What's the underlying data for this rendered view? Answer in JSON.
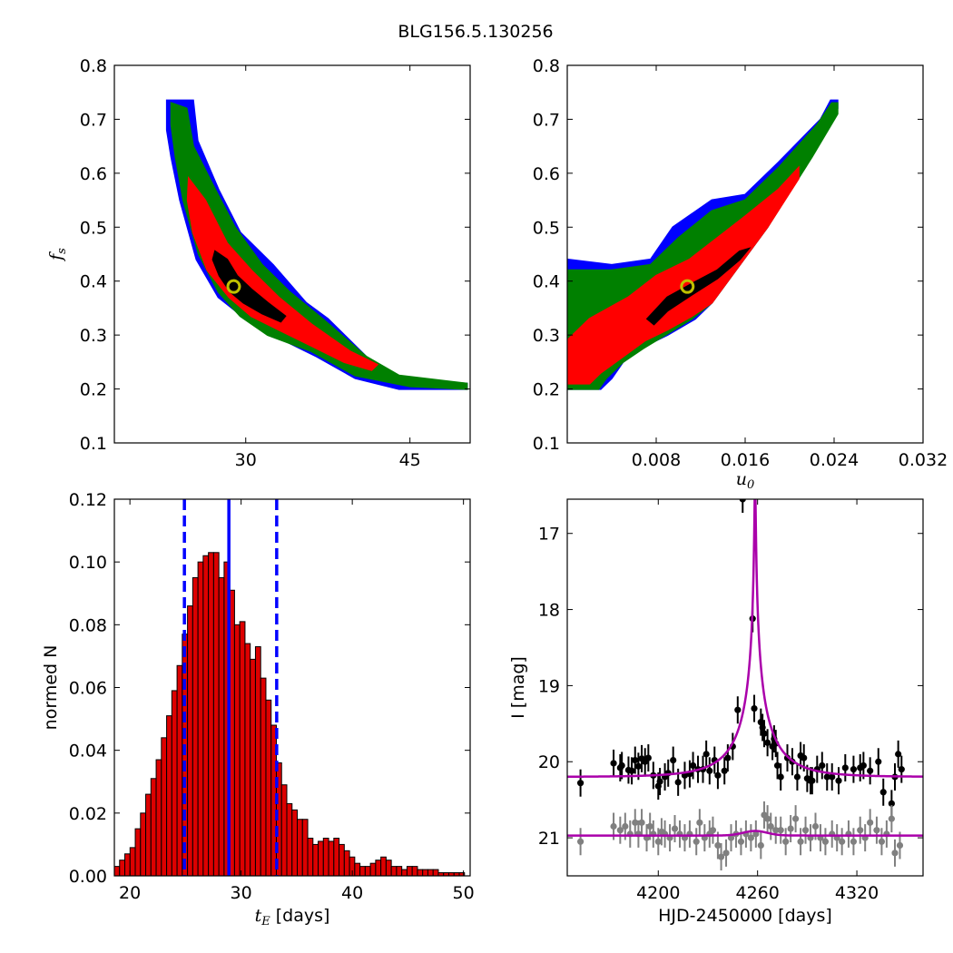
{
  "figure_title": "BLG156.5.130256",
  "colors": {
    "sigma1": "#000000",
    "sigma2": "#ff0000",
    "sigma3": "#008000",
    "sigma4": "#0000ff",
    "best_fit_marker": "#c0c000",
    "hist_bar": "#dd0000",
    "median_line": "#0000ff",
    "model_curve": "#aa00aa",
    "data_black": "#000000",
    "data_gray": "#808080"
  },
  "chart_data": [
    {
      "id": "fs_vs_tE",
      "type": "heatmap",
      "xlabel": "",
      "ylabel": "f_s",
      "xlim": [
        18,
        50.5
      ],
      "ylim": [
        0.1,
        0.8
      ],
      "xticks": [
        30,
        45
      ],
      "yticks": [
        0.1,
        0.2,
        0.3,
        0.4,
        0.5,
        0.6,
        0.7,
        0.8
      ],
      "best_fit": {
        "x": 28.9,
        "y": 0.39
      },
      "contours": [
        {
          "level": "sigma4",
          "points": [
            [
              22.8,
              0.735
            ],
            [
              25.2,
              0.735
            ],
            [
              25.6,
              0.66
            ],
            [
              27.5,
              0.57
            ],
            [
              29.5,
              0.49
            ],
            [
              32.5,
              0.43
            ],
            [
              35.5,
              0.36
            ],
            [
              37.5,
              0.33
            ],
            [
              42,
              0.24
            ],
            [
              45,
              0.215
            ],
            [
              50.2,
              0.21
            ],
            [
              50.2,
              0.2
            ],
            [
              44,
              0.2
            ],
            [
              40,
              0.22
            ],
            [
              36.5,
              0.26
            ],
            [
              32.5,
              0.3
            ],
            [
              30,
              0.33
            ],
            [
              27.5,
              0.37
            ],
            [
              25.5,
              0.44
            ],
            [
              24,
              0.55
            ],
            [
              23.2,
              0.63
            ],
            [
              22.8,
              0.68
            ]
          ]
        },
        {
          "level": "sigma3",
          "points": [
            [
              23.2,
              0.73
            ],
            [
              24.6,
              0.72
            ],
            [
              25.2,
              0.65
            ],
            [
              27.2,
              0.57
            ],
            [
              29,
              0.5
            ],
            [
              31.5,
              0.43
            ],
            [
              34,
              0.38
            ],
            [
              37,
              0.33
            ],
            [
              41,
              0.26
            ],
            [
              44,
              0.225
            ],
            [
              50.2,
              0.21
            ],
            [
              50.2,
              0.2
            ],
            [
              45,
              0.205
            ],
            [
              40,
              0.225
            ],
            [
              36,
              0.27
            ],
            [
              32,
              0.3
            ],
            [
              29.5,
              0.335
            ],
            [
              27.5,
              0.38
            ],
            [
              25.7,
              0.45
            ],
            [
              24.3,
              0.55
            ],
            [
              23.6,
              0.63
            ],
            [
              23.2,
              0.69
            ]
          ]
        },
        {
          "level": "sigma2",
          "points": [
            [
              24.8,
              0.59
            ],
            [
              26.3,
              0.55
            ],
            [
              28.3,
              0.47
            ],
            [
              30.5,
              0.42
            ],
            [
              33,
              0.37
            ],
            [
              36,
              0.32
            ],
            [
              39.5,
              0.27
            ],
            [
              42,
              0.245
            ],
            [
              41.5,
              0.235
            ],
            [
              39,
              0.25
            ],
            [
              36,
              0.28
            ],
            [
              33,
              0.31
            ],
            [
              30.5,
              0.335
            ],
            [
              28.5,
              0.37
            ],
            [
              26.5,
              0.42
            ],
            [
              25.2,
              0.49
            ],
            [
              24.7,
              0.55
            ]
          ]
        },
        {
          "level": "sigma1",
          "points": [
            [
              27.2,
              0.455
            ],
            [
              28.3,
              0.44
            ],
            [
              29.2,
              0.41
            ],
            [
              30.5,
              0.385
            ],
            [
              32,
              0.36
            ],
            [
              33.6,
              0.335
            ],
            [
              33.2,
              0.325
            ],
            [
              31.5,
              0.34
            ],
            [
              29.8,
              0.36
            ],
            [
              28.6,
              0.38
            ],
            [
              27.6,
              0.41
            ],
            [
              27,
              0.44
            ]
          ]
        }
      ]
    },
    {
      "id": "fs_vs_u0",
      "type": "heatmap",
      "xlabel": "u_0",
      "ylabel": "",
      "xlim": [
        0,
        0.032
      ],
      "ylim": [
        0.1,
        0.8
      ],
      "xticks": [
        0.008,
        0.016,
        0.024,
        0.032
      ],
      "xtick_labels": [
        "0.008",
        "0.016",
        "0.024",
        "0.032"
      ],
      "yticks": [
        0.1,
        0.2,
        0.3,
        0.4,
        0.5,
        0.6,
        0.7,
        0.8
      ],
      "best_fit": {
        "x": 0.0108,
        "y": 0.39
      },
      "contours": [
        {
          "level": "sigma4",
          "points": [
            [
              0,
              0.2
            ],
            [
              0,
              0.44
            ],
            [
              0.004,
              0.43
            ],
            [
              0.0075,
              0.44
            ],
            [
              0.0095,
              0.5
            ],
            [
              0.013,
              0.55
            ],
            [
              0.016,
              0.56
            ],
            [
              0.019,
              0.62
            ],
            [
              0.0228,
              0.7
            ],
            [
              0.0237,
              0.735
            ],
            [
              0.0243,
              0.735
            ],
            [
              0.0243,
              0.72
            ],
            [
              0.022,
              0.64
            ],
            [
              0.018,
              0.5
            ],
            [
              0.0155,
              0.43
            ],
            [
              0.013,
              0.36
            ],
            [
              0.0115,
              0.33
            ],
            [
              0.009,
              0.3
            ],
            [
              0.007,
              0.28
            ],
            [
              0.005,
              0.25
            ],
            [
              0.004,
              0.22
            ],
            [
              0.003,
              0.2
            ]
          ]
        },
        {
          "level": "sigma3",
          "points": [
            [
              0,
              0.2
            ],
            [
              0,
              0.42
            ],
            [
              0.004,
              0.42
            ],
            [
              0.0075,
              0.43
            ],
            [
              0.01,
              0.48
            ],
            [
              0.013,
              0.53
            ],
            [
              0.016,
              0.55
            ],
            [
              0.019,
              0.61
            ],
            [
              0.0225,
              0.69
            ],
            [
              0.0238,
              0.73
            ],
            [
              0.0243,
              0.73
            ],
            [
              0.0243,
              0.71
            ],
            [
              0.022,
              0.63
            ],
            [
              0.018,
              0.5
            ],
            [
              0.0155,
              0.43
            ],
            [
              0.013,
              0.36
            ],
            [
              0.0112,
              0.33
            ],
            [
              0.0088,
              0.3
            ],
            [
              0.0068,
              0.275
            ],
            [
              0.005,
              0.25
            ],
            [
              0.0035,
              0.22
            ],
            [
              0.0028,
              0.2
            ]
          ]
        },
        {
          "level": "sigma2",
          "points": [
            [
              0,
              0.21
            ],
            [
              0,
              0.29
            ],
            [
              0.002,
              0.33
            ],
            [
              0.0055,
              0.37
            ],
            [
              0.008,
              0.41
            ],
            [
              0.011,
              0.44
            ],
            [
              0.0135,
              0.48
            ],
            [
              0.016,
              0.52
            ],
            [
              0.019,
              0.57
            ],
            [
              0.0208,
              0.61
            ],
            [
              0.0208,
              0.59
            ],
            [
              0.018,
              0.5
            ],
            [
              0.0155,
              0.43
            ],
            [
              0.013,
              0.36
            ],
            [
              0.0112,
              0.335
            ],
            [
              0.009,
              0.31
            ],
            [
              0.007,
              0.29
            ],
            [
              0.005,
              0.26
            ],
            [
              0.003,
              0.23
            ],
            [
              0.002,
              0.21
            ]
          ]
        },
        {
          "level": "sigma1",
          "points": [
            [
              0.0072,
              0.33
            ],
            [
              0.009,
              0.37
            ],
            [
              0.0112,
              0.395
            ],
            [
              0.0135,
              0.42
            ],
            [
              0.0155,
              0.455
            ],
            [
              0.0163,
              0.46
            ],
            [
              0.0155,
              0.44
            ],
            [
              0.0135,
              0.405
            ],
            [
              0.0112,
              0.375
            ],
            [
              0.009,
              0.345
            ],
            [
              0.0078,
              0.32
            ]
          ]
        }
      ]
    },
    {
      "id": "tE_histogram",
      "type": "bar",
      "xlabel": "t_E  [days]",
      "ylabel": "normed N",
      "xlim": [
        18.6,
        50.6
      ],
      "ylim": [
        0,
        0.12
      ],
      "xticks": [
        20,
        30,
        40,
        50
      ],
      "yticks": [
        0,
        0.02,
        0.04,
        0.06,
        0.08,
        0.1,
        0.12
      ],
      "ytick_labels": [
        "0.00",
        "0.02",
        "0.04",
        "0.06",
        "0.08",
        "0.10",
        "0.12"
      ],
      "bin_start": 18.6,
      "bin_width": 0.47,
      "values": [
        0.003,
        0.005,
        0.007,
        0.009,
        0.015,
        0.02,
        0.026,
        0.031,
        0.037,
        0.044,
        0.051,
        0.059,
        0.067,
        0.077,
        0.086,
        0.095,
        0.1,
        0.102,
        0.103,
        0.103,
        0.095,
        0.1,
        0.091,
        0.08,
        0.081,
        0.074,
        0.069,
        0.073,
        0.063,
        0.056,
        0.048,
        0.036,
        0.029,
        0.023,
        0.021,
        0.018,
        0.018,
        0.012,
        0.01,
        0.011,
        0.012,
        0.011,
        0.012,
        0.01,
        0.008,
        0.006,
        0.004,
        0.003,
        0.003,
        0.004,
        0.005,
        0.006,
        0.005,
        0.003,
        0.003,
        0.002,
        0.003,
        0.003,
        0.002,
        0.002,
        0.002,
        0.002,
        0.001,
        0.001,
        0.001,
        0.001,
        0.001
      ],
      "median": 28.9,
      "bounds": [
        24.9,
        33.2
      ]
    },
    {
      "id": "light_curve",
      "type": "scatter",
      "xlabel": "HJD-2450000 [days]",
      "ylabel": "I [mag]",
      "xlim": [
        4145,
        4360
      ],
      "ylim": [
        21.5,
        16.55
      ],
      "xticks": [
        4200,
        4260,
        4320
      ],
      "yticks": [
        17,
        18,
        19,
        20,
        21
      ],
      "model": {
        "t0": 4258.5,
        "u0": 0.0108,
        "tE": 28.9,
        "base_mag": 20.2,
        "fs": 0.39
      },
      "model_gray": {
        "base_mag": 20.97,
        "bump": 0.06
      },
      "series": [
        {
          "style": "black",
          "x": [
            4153,
            4173,
            4177,
            4178,
            4182,
            4184,
            4186,
            4188,
            4190,
            4192,
            4194,
            4197,
            4200,
            4201,
            4204,
            4206,
            4209,
            4212,
            4216,
            4219,
            4221,
            4224,
            4227,
            4229,
            4231,
            4234,
            4236,
            4240,
            4242,
            4245,
            4248,
            4251,
            4257,
            4258,
            4262,
            4263,
            4264,
            4266,
            4269,
            4270,
            4271,
            4272,
            4274,
            4278,
            4281,
            4284,
            4286,
            4288,
            4290,
            4292,
            4293,
            4296,
            4299,
            4302,
            4305,
            4309,
            4313,
            4318,
            4322,
            4324,
            4328,
            4333,
            4336,
            4341,
            4343,
            4345,
            4347
          ],
          "y": [
            20.28,
            20.02,
            20.08,
            20.05,
            20.11,
            20.12,
            19.98,
            20.06,
            19.96,
            20.0,
            19.95,
            20.18,
            20.32,
            20.26,
            20.2,
            20.15,
            19.98,
            20.27,
            20.18,
            20.16,
            20.05,
            20.1,
            20.1,
            19.9,
            20.12,
            19.98,
            20.18,
            20.12,
            19.95,
            19.8,
            19.32,
            16.55,
            18.12,
            19.3,
            19.48,
            19.55,
            19.63,
            19.75,
            19.8,
            19.7,
            19.76,
            20.05,
            20.2,
            19.95,
            20.0,
            20.2,
            19.92,
            19.95,
            20.22,
            20.25,
            20.25,
            20.1,
            20.05,
            20.2,
            20.2,
            20.25,
            20.08,
            20.1,
            20.08,
            20.05,
            20.12,
            20.0,
            20.4,
            20.55,
            20.2,
            19.9,
            20.1
          ]
        },
        {
          "style": "gray",
          "x": [
            4153,
            4173,
            4177,
            4180,
            4183,
            4186,
            4188,
            4190,
            4193,
            4195,
            4197,
            4200,
            4202,
            4204,
            4207,
            4210,
            4213,
            4216,
            4219,
            4223,
            4225,
            4228,
            4231,
            4233,
            4236,
            4238,
            4241,
            4244,
            4247,
            4250,
            4253,
            4256,
            4259,
            4262,
            4264,
            4266,
            4268,
            4271,
            4274,
            4277,
            4280,
            4283,
            4286,
            4289,
            4292,
            4295,
            4298,
            4301,
            4305,
            4308,
            4311,
            4315,
            4318,
            4322,
            4325,
            4328,
            4332,
            4335,
            4338,
            4341,
            4343,
            4346
          ],
          "y": [
            21.05,
            20.85,
            20.9,
            20.85,
            20.95,
            20.8,
            20.95,
            20.8,
            21.0,
            20.85,
            20.95,
            21.05,
            20.92,
            20.95,
            21.0,
            20.88,
            20.95,
            21.0,
            20.95,
            21.05,
            20.8,
            21.0,
            20.95,
            20.9,
            21.1,
            21.25,
            21.2,
            21.0,
            20.95,
            21.05,
            20.95,
            21.0,
            20.95,
            21.1,
            20.7,
            20.75,
            20.85,
            20.9,
            20.9,
            21.05,
            20.88,
            20.75,
            21.05,
            20.9,
            21.0,
            20.85,
            21.0,
            21.05,
            20.95,
            21.0,
            21.05,
            20.95,
            21.05,
            20.9,
            21.0,
            20.8,
            20.9,
            21.05,
            20.95,
            20.75,
            21.2,
            21.1
          ]
        }
      ]
    }
  ]
}
